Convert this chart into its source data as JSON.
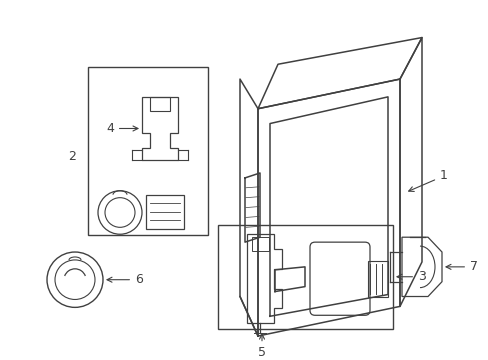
{
  "background_color": "#ffffff",
  "line_color": "#404040",
  "fig_width": 4.89,
  "fig_height": 3.6,
  "dpi": 100
}
